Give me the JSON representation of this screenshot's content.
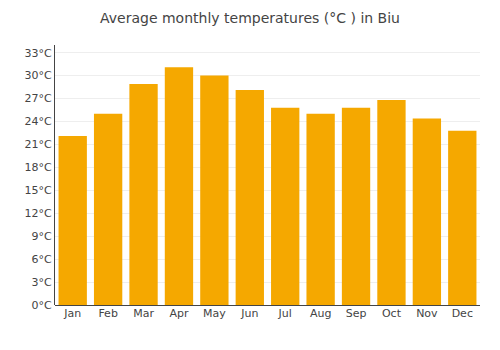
{
  "chart_data": {
    "type": "bar",
    "title": "Average monthly temperatures (°C ) in Biu",
    "categories": [
      "Jan",
      "Feb",
      "Mar",
      "Apr",
      "May",
      "Jun",
      "Jul",
      "Aug",
      "Sep",
      "Oct",
      "Nov",
      "Dec"
    ],
    "values": [
      22.1,
      25.0,
      28.9,
      31.1,
      30.0,
      28.1,
      25.8,
      25.0,
      25.8,
      26.8,
      24.4,
      22.8
    ],
    "color": "#F5A800",
    "ylim": [
      0,
      34
    ],
    "yticks": [
      {
        "value": 0,
        "label": "0°C"
      },
      {
        "value": 3,
        "label": "3°C"
      },
      {
        "value": 6,
        "label": "6°C"
      },
      {
        "value": 9,
        "label": "9°C"
      },
      {
        "value": 12,
        "label": "12°C"
      },
      {
        "value": 15,
        "label": "15°C"
      },
      {
        "value": 18,
        "label": "18°C"
      },
      {
        "value": 21,
        "label": "21°C"
      },
      {
        "value": 24,
        "label": "24°C"
      },
      {
        "value": 27,
        "label": "27°C"
      },
      {
        "value": 30,
        "label": "30°C"
      },
      {
        "value": 33,
        "label": "33°C"
      }
    ],
    "grid": true
  }
}
